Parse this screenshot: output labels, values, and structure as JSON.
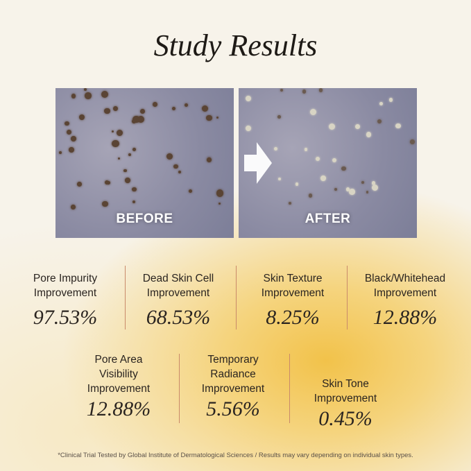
{
  "title": "Study Results",
  "photos": {
    "before_label": "BEFORE",
    "after_label": "AFTER"
  },
  "stats_row1": [
    {
      "label1": "Pore Impurity",
      "label2": "Improvement",
      "value": "97.53%"
    },
    {
      "label1": "Dead Skin Cell",
      "label2": "Improvement",
      "value": "68.53%"
    },
    {
      "label1": "Skin Texture",
      "label2": "Improvement",
      "value": "8.25%"
    },
    {
      "label1": "Black/Whitehead",
      "label2": "Improvement",
      "value": "12.88%"
    }
  ],
  "stats_row2": [
    {
      "label1": "Pore Area",
      "label2": "Visibility",
      "label3": "Improvement",
      "value": "12.88%"
    },
    {
      "label1": "Temporary",
      "label2": "Radiance",
      "label3": "Improvement",
      "value": "5.56%"
    },
    {
      "label1": "Skin Tone",
      "label2": "Improvement",
      "value": "0.45%"
    }
  ],
  "footnote": "*Clinical Trial Tested by Global Institute of Dermatological Sciences / Results may vary depending on individual skin types."
}
